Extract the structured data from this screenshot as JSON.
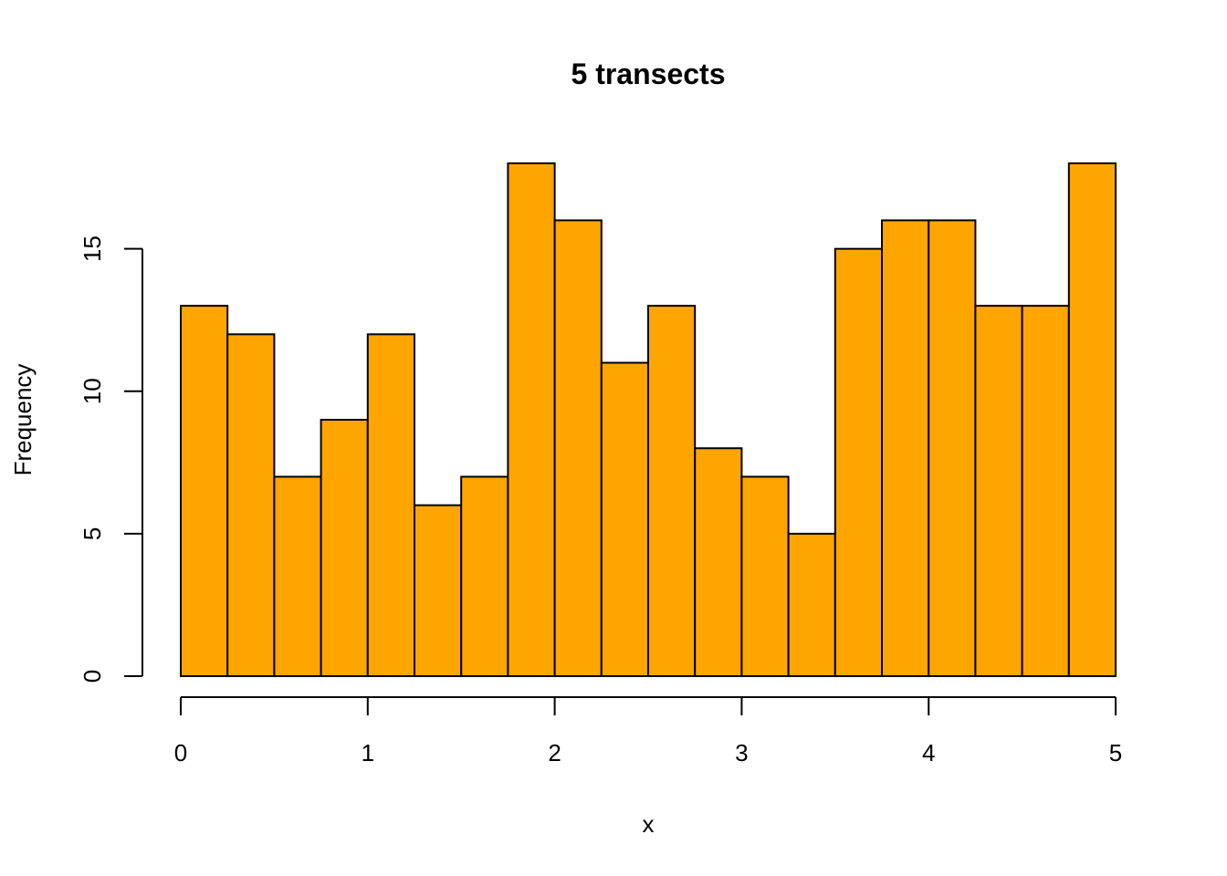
{
  "chart_data": {
    "type": "bar",
    "title": "5 transects",
    "xlabel": "x",
    "ylabel": "Frequency",
    "bins": [
      [
        0.0,
        0.25
      ],
      [
        0.25,
        0.5
      ],
      [
        0.5,
        0.75
      ],
      [
        0.75,
        1.0
      ],
      [
        1.0,
        1.25
      ],
      [
        1.25,
        1.5
      ],
      [
        1.5,
        1.75
      ],
      [
        1.75,
        2.0
      ],
      [
        2.0,
        2.25
      ],
      [
        2.25,
        2.5
      ],
      [
        2.5,
        2.75
      ],
      [
        2.75,
        3.0
      ],
      [
        3.0,
        3.25
      ],
      [
        3.25,
        3.5
      ],
      [
        3.5,
        3.75
      ],
      [
        3.75,
        4.0
      ],
      [
        4.0,
        4.25
      ],
      [
        4.25,
        4.5
      ],
      [
        4.5,
        4.75
      ],
      [
        4.75,
        5.0
      ]
    ],
    "values": [
      13,
      12,
      7,
      9,
      12,
      6,
      7,
      18,
      16,
      11,
      13,
      8,
      7,
      5,
      15,
      16,
      16,
      13,
      13,
      18
    ],
    "xlim": [
      0,
      5
    ],
    "ylim": [
      0,
      18
    ],
    "xticks": [
      0,
      1,
      2,
      3,
      4,
      5
    ],
    "yticks": [
      0,
      5,
      10,
      15
    ],
    "bar_color": "#FFA500",
    "grid": false,
    "legend": "none"
  }
}
